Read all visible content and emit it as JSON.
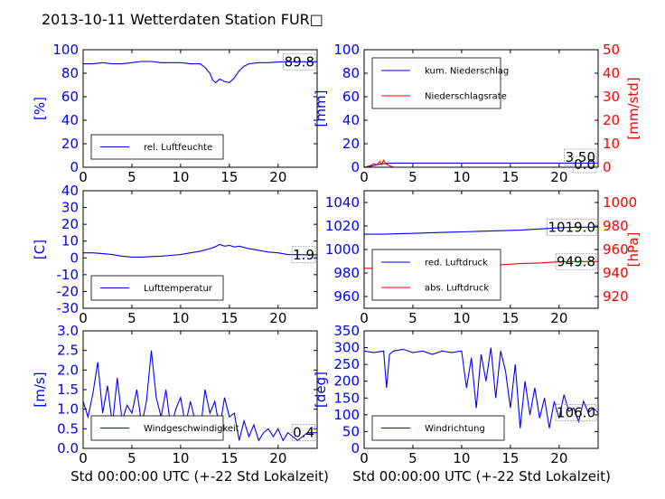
{
  "title": "2013-10-11 Wetterdaten Station FUR□",
  "xlabel": "Std 00:00:00 UTC (+-22 Std Lokalzeit)",
  "colors": {
    "primary": "#0000ff",
    "secondary": "#ff0000",
    "axes": "#000000"
  },
  "chart_data": [
    {
      "type": "line",
      "panel": "humidity",
      "ylabel": "[%]",
      "xlim": [
        0,
        24
      ],
      "xticks": [
        0,
        5,
        10,
        15,
        20
      ],
      "ylim": [
        0,
        100
      ],
      "yticks": [
        0,
        20,
        40,
        60,
        80,
        100
      ],
      "legend_position": "lower-left",
      "series": [
        {
          "name": "rel. Luftfeuchte",
          "color": "#0000ff",
          "x": [
            0,
            1,
            2,
            3,
            4,
            5,
            6,
            7,
            8,
            9,
            10,
            11,
            12,
            12.5,
            13,
            13.3,
            13.6,
            14,
            14.5,
            15,
            15.5,
            16,
            16.5,
            17,
            18,
            19,
            20,
            21,
            22,
            23,
            24
          ],
          "y": [
            88,
            88,
            89,
            88,
            88,
            89,
            90,
            90,
            89,
            89,
            89,
            88,
            88,
            85,
            80,
            74,
            72,
            75,
            73,
            72,
            76,
            82,
            86,
            88,
            89,
            89,
            89.5,
            89.8,
            89.8,
            89.8,
            89.8
          ]
        }
      ],
      "annotations": [
        {
          "text": "89.8",
          "axis": "left"
        }
      ]
    },
    {
      "type": "line",
      "panel": "precipitation",
      "ylabel": "[mm]",
      "y2label": "[mm/std]",
      "xlim": [
        0,
        24
      ],
      "xticks": [
        0,
        5,
        10,
        15,
        20
      ],
      "ylim": [
        0,
        100
      ],
      "yticks": [
        0,
        20,
        40,
        60,
        80,
        100
      ],
      "y2lim": [
        0,
        50
      ],
      "y2ticks": [
        0,
        10,
        20,
        30,
        40,
        50
      ],
      "legend_position": "upper-left",
      "series": [
        {
          "name": "kum. Niederschlag",
          "color": "#0000ff",
          "axis": "left",
          "x": [
            0,
            0.5,
            1,
            1.5,
            2,
            2.5,
            3,
            4,
            5,
            10,
            15,
            20,
            24
          ],
          "y": [
            0,
            0.5,
            1.5,
            2.5,
            3.0,
            3.4,
            3.5,
            3.5,
            3.5,
            3.5,
            3.5,
            3.5,
            3.5
          ]
        },
        {
          "name": "Niederschlagsrate",
          "color": "#ff0000",
          "axis": "right",
          "x": [
            0,
            0.5,
            1,
            1.3,
            1.6,
            1.8,
            2.0,
            2.2,
            2.5,
            3,
            4,
            5,
            10,
            15,
            20,
            24
          ],
          "y": [
            0,
            0.5,
            1.5,
            1.0,
            2.5,
            1.2,
            3.0,
            1.5,
            0.8,
            0,
            0,
            0,
            0,
            0,
            0,
            0
          ]
        }
      ],
      "annotations": [
        {
          "text": "3.50",
          "axis": "left"
        },
        {
          "text": "0.0",
          "axis": "right"
        }
      ]
    },
    {
      "type": "line",
      "panel": "temperature",
      "ylabel": "[C]",
      "xlim": [
        0,
        24
      ],
      "xticks": [
        0,
        5,
        10,
        15,
        20
      ],
      "ylim": [
        -30,
        40
      ],
      "yticks": [
        -30,
        -20,
        -10,
        0,
        10,
        20,
        30,
        40
      ],
      "legend_position": "lower-left",
      "series": [
        {
          "name": "Lufttemperatur",
          "color": "#0000ff",
          "x": [
            0,
            1,
            2,
            3,
            4,
            5,
            6,
            7,
            8,
            9,
            10,
            11,
            12,
            13,
            13.5,
            14,
            14.5,
            15,
            15.5,
            16,
            17,
            18,
            19,
            20,
            21,
            22,
            23,
            24
          ],
          "y": [
            3,
            3,
            2.5,
            2,
            1,
            0.5,
            0.5,
            0.8,
            1,
            1.5,
            2,
            3,
            4,
            5.5,
            6.5,
            8,
            7,
            7.5,
            6.5,
            7,
            5.5,
            4.5,
            3.5,
            3,
            2,
            1.9,
            1.9,
            1.9
          ]
        }
      ],
      "annotations": [
        {
          "text": "1.9",
          "axis": "left"
        }
      ]
    },
    {
      "type": "line",
      "panel": "pressure",
      "ylabel": "",
      "y2label": "[hPa]",
      "xlim": [
        0,
        24
      ],
      "xticks": [
        0,
        5,
        10,
        15,
        20
      ],
      "ylim": [
        950,
        1050
      ],
      "yticks": [
        960,
        980,
        1000,
        1020,
        1040
      ],
      "y2lim": [
        910,
        1010
      ],
      "y2ticks": [
        920,
        940,
        960,
        980,
        1000
      ],
      "legend_position": "lower-left",
      "series": [
        {
          "name": "red. Luftdruck",
          "color": "#0000ff",
          "axis": "left",
          "x": [
            0,
            2,
            4,
            6,
            8,
            10,
            12,
            14,
            16,
            18,
            20,
            22,
            24
          ],
          "y": [
            1013,
            1013,
            1013.5,
            1014,
            1014.5,
            1015,
            1015.5,
            1016,
            1016.5,
            1017.5,
            1018.5,
            1019,
            1019
          ]
        },
        {
          "name": "abs. Luftdruck",
          "color": "#ff0000",
          "axis": "right",
          "x": [
            0,
            2,
            4,
            6,
            8,
            10,
            12,
            14,
            16,
            18,
            20,
            22,
            24
          ],
          "y": [
            944,
            944,
            944,
            944.5,
            945,
            946,
            946.5,
            947,
            948,
            948.5,
            949.5,
            949.8,
            949.8
          ]
        }
      ],
      "annotations": [
        {
          "text": "1019.0",
          "axis": "left"
        },
        {
          "text": "949.8",
          "axis": "right"
        }
      ]
    },
    {
      "type": "line",
      "panel": "wind-speed",
      "ylabel": "[m/s]",
      "xlim": [
        0,
        24
      ],
      "xticks": [
        0,
        5,
        10,
        15,
        20
      ],
      "ylim": [
        0,
        3.0
      ],
      "yticks": [
        0.0,
        0.5,
        1.0,
        1.5,
        2.0,
        2.5,
        3.0
      ],
      "legend_position": "lower-left",
      "series": [
        {
          "name": "Windgeschwindigkeit",
          "color": "#0000ff",
          "x": [
            0,
            0.5,
            1,
            1.5,
            2,
            2.5,
            3,
            3.5,
            4,
            4.5,
            5,
            5.5,
            6,
            6.5,
            7,
            7.5,
            8,
            8.5,
            9,
            9.5,
            10,
            10.5,
            11,
            11.5,
            12,
            12.5,
            13,
            13.5,
            14,
            14.5,
            15,
            15.5,
            16,
            16.5,
            17,
            17.5,
            18,
            18.5,
            19,
            19.5,
            20,
            20.5,
            21,
            21.5,
            22,
            22.5,
            23,
            23.5,
            24
          ],
          "y": [
            1.2,
            0.8,
            1.4,
            2.2,
            0.9,
            1.6,
            0.6,
            1.8,
            0.7,
            1.1,
            0.9,
            1.5,
            0.6,
            1.2,
            2.5,
            1.3,
            0.8,
            1.5,
            0.5,
            1.0,
            1.3,
            0.6,
            1.2,
            0.7,
            0.4,
            1.5,
            0.9,
            1.2,
            0.5,
            1.3,
            0.8,
            0.9,
            0.2,
            0.7,
            0.3,
            0.6,
            0.2,
            0.4,
            0.5,
            0.3,
            0.5,
            0.2,
            0.4,
            0.3,
            0.2,
            0.3,
            0.4,
            0.4,
            0.4
          ]
        }
      ],
      "annotations": [
        {
          "text": "0.4",
          "axis": "left"
        }
      ]
    },
    {
      "type": "line",
      "panel": "wind-direction",
      "ylabel": "[deg]",
      "xlim": [
        0,
        24
      ],
      "xticks": [
        0,
        5,
        10,
        15,
        20
      ],
      "ylim": [
        0,
        350
      ],
      "yticks": [
        0,
        50,
        100,
        150,
        200,
        250,
        300,
        350
      ],
      "legend_position": "lower-left",
      "series": [
        {
          "name": "Windrichtung",
          "color": "#0000ff",
          "x": [
            0,
            1,
            2,
            2.3,
            2.6,
            3,
            4,
            5,
            6,
            7,
            8,
            9,
            10,
            10.5,
            11,
            11.5,
            12,
            12.5,
            13,
            13.5,
            14,
            14.5,
            15,
            15.5,
            16,
            16.5,
            17,
            17.5,
            18,
            18.5,
            19,
            19.5,
            20,
            20.5,
            21,
            21.5,
            22,
            22.5,
            23,
            23.5,
            24
          ],
          "y": [
            290,
            285,
            290,
            180,
            280,
            290,
            295,
            285,
            290,
            280,
            290,
            285,
            290,
            180,
            270,
            120,
            280,
            200,
            300,
            150,
            290,
            230,
            120,
            250,
            60,
            200,
            100,
            180,
            90,
            150,
            60,
            140,
            90,
            160,
            110,
            120,
            80,
            140,
            106,
            120,
            106
          ]
        }
      ],
      "annotations": [
        {
          "text": "106.0",
          "axis": "left"
        }
      ]
    }
  ]
}
